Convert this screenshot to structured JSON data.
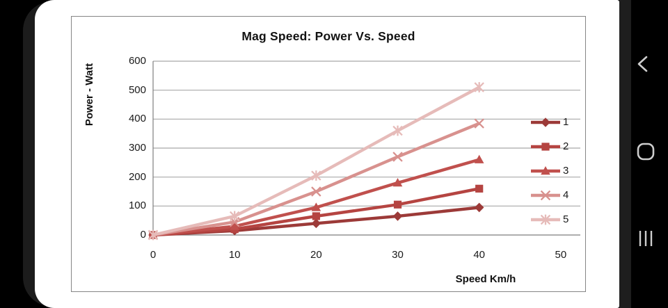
{
  "device": {
    "nav": [
      {
        "id": "back",
        "icon": "chevron-left"
      },
      {
        "id": "home",
        "icon": "rounded-square"
      },
      {
        "id": "recents",
        "icon": "three-vertical-bars"
      }
    ],
    "nav_icon_color": "#cdcdcd",
    "screen_color": "#ffffff",
    "body_color": "#000000"
  },
  "chart_data": {
    "type": "line",
    "title": "Mag Speed: Power Vs. Speed",
    "xlabel": "Speed Km/h",
    "ylabel": "Power - Watt",
    "x": [
      0,
      10,
      20,
      30,
      40
    ],
    "xticks": [
      0,
      10,
      20,
      30,
      40,
      50
    ],
    "yticks": [
      0,
      100,
      200,
      300,
      400,
      500,
      600
    ],
    "xlim": [
      0,
      52.4
    ],
    "ylim": [
      0,
      600
    ],
    "grid": "horizontal",
    "grid_color": "#a8a8a8",
    "axis_color": "#7e7e7e",
    "legend_position": "right",
    "series": [
      {
        "name": "1",
        "marker": "diamond",
        "color": "#9C3A38",
        "values": [
          0,
          15,
          40,
          65,
          95
        ]
      },
      {
        "name": "2",
        "marker": "square",
        "color": "#B54441",
        "values": [
          0,
          20,
          65,
          105,
          160
        ]
      },
      {
        "name": "3",
        "marker": "triangle",
        "color": "#C0504D",
        "values": [
          0,
          30,
          95,
          180,
          260
        ]
      },
      {
        "name": "4",
        "marker": "x",
        "color": "#D8918E",
        "values": [
          0,
          45,
          150,
          270,
          385
        ]
      },
      {
        "name": "5",
        "marker": "asterisk",
        "color": "#E6BBB9",
        "values": [
          0,
          65,
          205,
          360,
          510
        ]
      }
    ]
  }
}
